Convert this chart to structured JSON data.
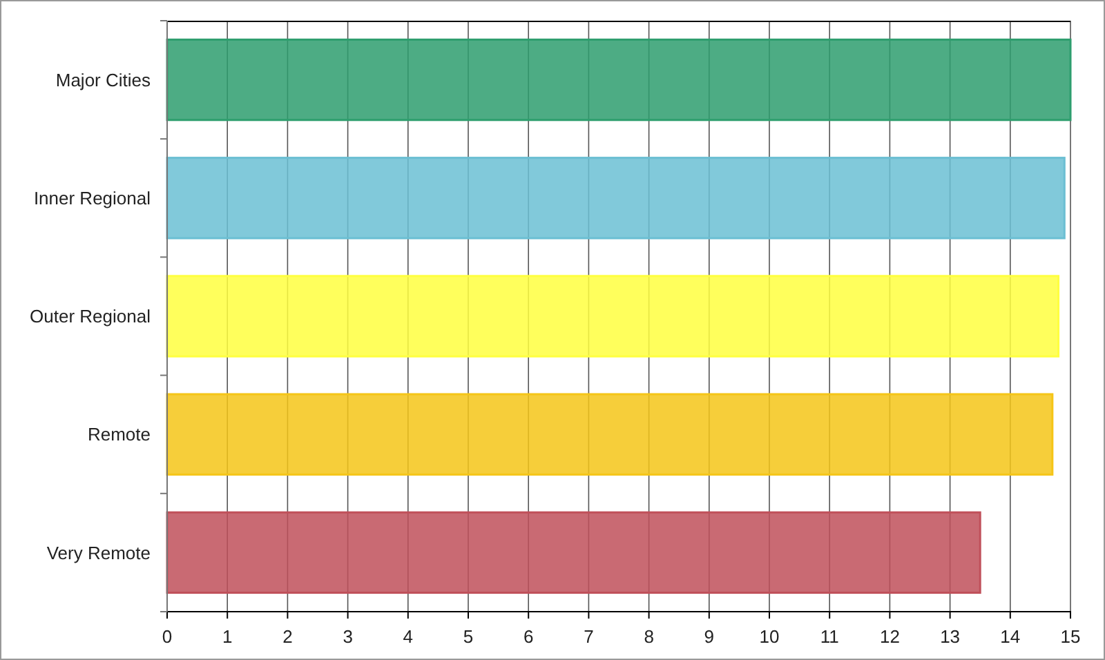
{
  "chart_data": {
    "type": "bar",
    "orientation": "horizontal",
    "categories": [
      "Major Cities",
      "Inner Regional",
      "Outer Regional",
      "Remote",
      "Very Remote"
    ],
    "values": [
      15.0,
      14.9,
      14.8,
      14.7,
      13.5
    ],
    "colors": [
      "#2e9e6e",
      "#6bbfd3",
      "#ffff40",
      "#f5c518",
      "#c0505a"
    ],
    "xlim": [
      0,
      15
    ],
    "xticks": [
      0,
      1,
      2,
      3,
      4,
      5,
      6,
      7,
      8,
      9,
      10,
      11,
      12,
      13,
      14,
      15
    ],
    "grid": "x"
  }
}
